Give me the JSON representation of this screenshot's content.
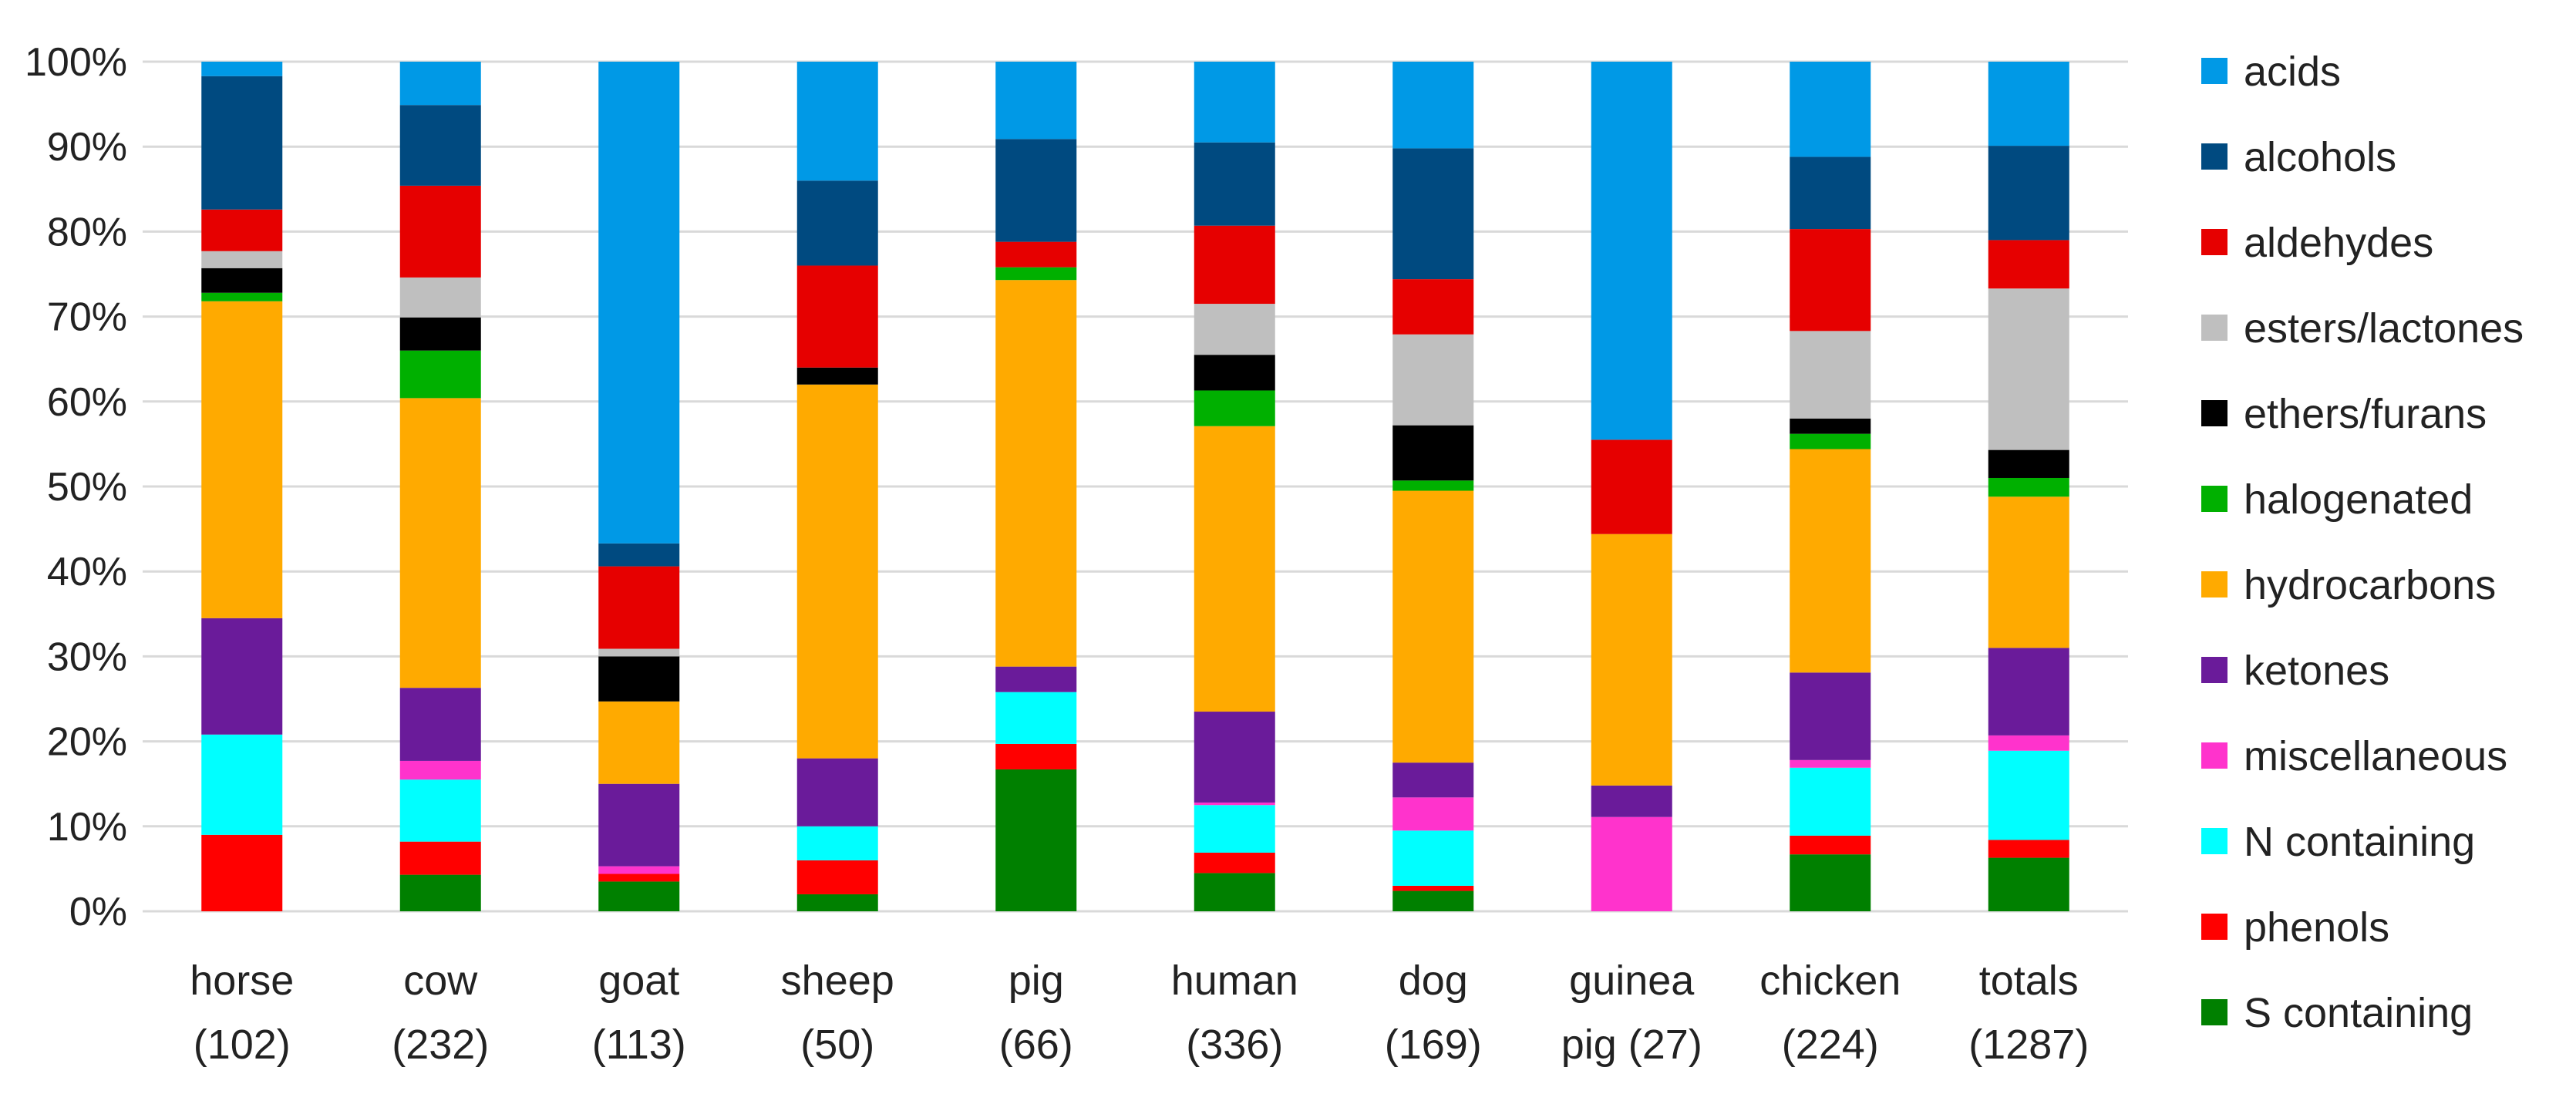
{
  "chart_data": {
    "type": "bar",
    "stacked": true,
    "normalized_percent": true,
    "title": "",
    "xlabel": "",
    "ylabel": "",
    "ylim": [
      0,
      100
    ],
    "y_ticks": [
      "0%",
      "10%",
      "20%",
      "30%",
      "40%",
      "50%",
      "60%",
      "70%",
      "80%",
      "90%",
      "100%"
    ],
    "grid": true,
    "legend_position": "right",
    "categories": [
      [
        "horse",
        "(102)"
      ],
      [
        "cow",
        "(232)"
      ],
      [
        "goat",
        "(113)"
      ],
      [
        "sheep",
        "(50)"
      ],
      [
        "pig",
        "(66)"
      ],
      [
        "human",
        "(336)"
      ],
      [
        "dog",
        "(169)"
      ],
      [
        "guinea",
        "pig (27)"
      ],
      [
        "chicken",
        "(224)"
      ],
      [
        "totals",
        "(1287)"
      ]
    ],
    "series": [
      {
        "name": "S containing",
        "color": "#008000",
        "values": [
          0,
          4.3,
          3.5,
          2,
          16.7,
          4.5,
          2.4,
          0,
          6.7,
          6.3
        ]
      },
      {
        "name": "phenols",
        "color": "#ff0000",
        "values": [
          9,
          3.9,
          0.9,
          4,
          3,
          2.4,
          0.6,
          0,
          2.2,
          2.1
        ]
      },
      {
        "name": "N containing",
        "color": "#00ffff",
        "values": [
          11.8,
          7.3,
          0,
          4,
          6.1,
          5.6,
          6.5,
          0,
          8,
          10.5
        ]
      },
      {
        "name": "miscellaneous",
        "color": "#ff33cc",
        "values": [
          0,
          2.2,
          0.9,
          0,
          0,
          0.3,
          3.9,
          11.1,
          0.9,
          1.8
        ]
      },
      {
        "name": "ketones",
        "color": "#6a1b9a",
        "values": [
          13.7,
          8.6,
          9.7,
          8,
          3,
          10.7,
          4.1,
          3.7,
          10.3,
          10.3
        ]
      },
      {
        "name": "hydrocarbons",
        "color": "#ffaa00",
        "values": [
          37.3,
          34.1,
          9.7,
          44,
          45.5,
          33.6,
          32,
          29.6,
          26.3,
          17.8
        ]
      },
      {
        "name": "halogenated",
        "color": "#00b000",
        "values": [
          1,
          5.6,
          0,
          0,
          1.5,
          4.2,
          1.2,
          0,
          1.8,
          2.2
        ]
      },
      {
        "name": "ethers/furans",
        "color": "#000000",
        "values": [
          2.9,
          3.9,
          5.3,
          2,
          0,
          4.2,
          6.5,
          0,
          1.8,
          3.3
        ]
      },
      {
        "name": "esters/lactones",
        "color": "#bfbfbf",
        "values": [
          2,
          4.7,
          0.9,
          0,
          0,
          6,
          10.7,
          0,
          10.3,
          19
        ]
      },
      {
        "name": "aldehydes",
        "color": "#e60000",
        "values": [
          4.9,
          10.8,
          9.7,
          12,
          3,
          9.2,
          6.5,
          11.1,
          12,
          5.7
        ]
      },
      {
        "name": "alcohols",
        "color": "#004a80",
        "values": [
          15.7,
          9.5,
          2.7,
          10,
          12.1,
          9.8,
          15.4,
          0,
          8.5,
          11.1
        ]
      },
      {
        "name": "acids",
        "color": "#0099e6",
        "values": [
          1.7,
          5.1,
          56.7,
          14,
          9.1,
          9.5,
          10.2,
          44.5,
          11.2,
          9.9
        ]
      }
    ],
    "legend_order": [
      "acids",
      "alcohols",
      "aldehydes",
      "esters/lactones",
      "ethers/furans",
      "halogenated",
      "hydrocarbons",
      "ketones",
      "miscellaneous",
      "N containing",
      "phenols",
      "S containing"
    ]
  }
}
